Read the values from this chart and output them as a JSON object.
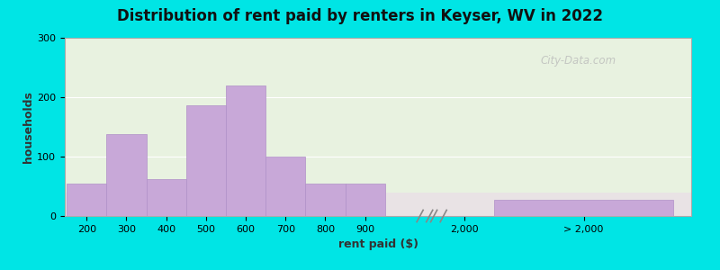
{
  "title": "Distribution of rent paid by renters in Keyser, WV in 2022",
  "xlabel": "rent paid ($)",
  "ylabel": "households",
  "bar_color": "#c8a8d8",
  "bar_edge_color": "#b090c8",
  "background_outer": "#00e5e5",
  "background_inner": "#e8f2e0",
  "background_bottom_strip": "#ead8ea",
  "watermark": "City-Data.com",
  "ylim": [
    0,
    300
  ],
  "yticks": [
    0,
    100,
    200,
    300
  ],
  "main_categories": [
    "200",
    "300",
    "400",
    "500",
    "600",
    "700",
    "800",
    "900"
  ],
  "main_values": [
    55,
    138,
    62,
    187,
    220,
    100,
    55,
    55
  ],
  "label_2000": "2,000",
  "label_gt2000": "> 2,000",
  "value_2000": 0,
  "value_gt2000": 28,
  "title_fontsize": 12,
  "axis_label_fontsize": 9,
  "tick_fontsize": 8
}
